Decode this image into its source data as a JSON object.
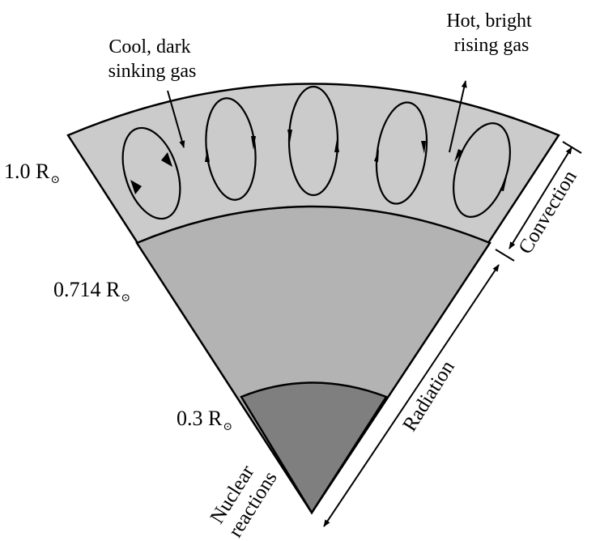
{
  "radius_labels": {
    "surface": {
      "value": "1.0 R",
      "symbol": "⊙"
    },
    "convection_base": {
      "value": "0.714 R",
      "symbol": "⊙"
    },
    "core": {
      "value": "0.3 R",
      "symbol": "⊙"
    }
  },
  "zones": {
    "convection": "Convection",
    "radiation": "Radiation",
    "core_line1": "Nuclear",
    "core_line2": "reactions"
  },
  "annotations": {
    "cool_line1": "Cool, dark",
    "cool_line2": "sinking gas",
    "hot_line1": "Hot, bright",
    "hot_line2": "rising gas"
  },
  "colors": {
    "convection_zone": "#cbcbcb",
    "radiative_zone": "#b3b3b3",
    "core": "#7f7f7f",
    "stroke": "#000000"
  }
}
